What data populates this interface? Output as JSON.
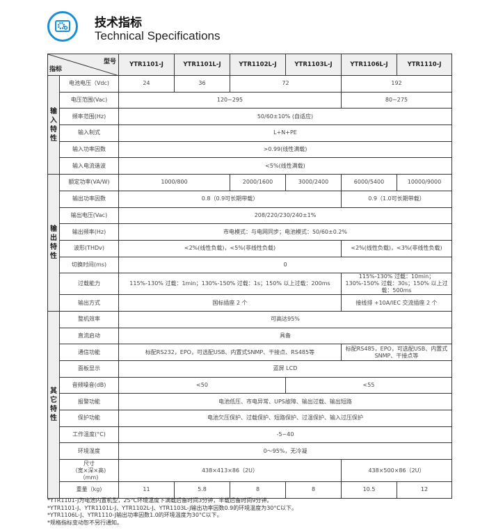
{
  "header": {
    "title_cn": "技术指标",
    "title_en": "Technical Specifications",
    "icon": "gear-settings-icon",
    "accent": "#1a8fd6"
  },
  "table": {
    "corner_model": "型号",
    "corner_spec": "指标",
    "models": [
      "YTR1101-J",
      "YTR1101L-J",
      "YTR1102L-J",
      "YTR1103L-J",
      "YTR1106L-J",
      "YTR1110-J"
    ],
    "groups": [
      {
        "name": "输\n入\n特\n性",
        "rows": [
          {
            "label": "电池电压（Vdc)",
            "cells": [
              {
                "t": "24",
                "s": 1
              },
              {
                "t": "36",
                "s": 1
              },
              {
                "t": "72",
                "s": 2
              },
              {
                "t": "192",
                "s": 2
              }
            ]
          },
          {
            "label": "电压范围(Vac)",
            "cells": [
              {
                "t": "120~295",
                "s": 4
              },
              {
                "t": "80~275",
                "s": 2
              }
            ]
          },
          {
            "label": "频率范围(Hz)",
            "cells": [
              {
                "t": "50/60±10% (自适应)",
                "s": 6
              }
            ]
          },
          {
            "label": "输入制式",
            "cells": [
              {
                "t": "L+N+PE",
                "s": 6
              }
            ]
          },
          {
            "label": "输入功率因数",
            "cells": [
              {
                "t": ">0.99(线性满载)",
                "s": 6
              }
            ]
          },
          {
            "label": "输入电流谐波",
            "cells": [
              {
                "t": "<5%(线性满载)",
                "s": 6
              }
            ]
          }
        ]
      },
      {
        "name": "输\n出\n特\n性",
        "rows": [
          {
            "label": "额定功率(VA/W)",
            "cells": [
              {
                "t": "1000/800",
                "s": 2
              },
              {
                "t": "2000/1600",
                "s": 1
              },
              {
                "t": "3000/2400",
                "s": 1
              },
              {
                "t": "6000/5400",
                "s": 1
              },
              {
                "t": "10000/9000",
                "s": 1
              }
            ]
          },
          {
            "label": "输出功率因数",
            "cells": [
              {
                "t": "0.8（0.9可长期带载）",
                "s": 4
              },
              {
                "t": "0.9（1.0可长期带载）",
                "s": 2
              }
            ]
          },
          {
            "label": "输出电压(Vac)",
            "cells": [
              {
                "t": "208/220/230/240±1%",
                "s": 6
              }
            ]
          },
          {
            "label": "输出频率(Hz)",
            "cells": [
              {
                "t": "市电模式：与电网同步；电池模式：50/60±0.2%",
                "s": 6
              }
            ]
          },
          {
            "label": "波形(THDv)",
            "cells": [
              {
                "t": "<2%(线性负载)，<5%(非线性负载)",
                "s": 4
              },
              {
                "t": "<2%(线性负载)，<3%(非线性负载)",
                "s": 2
              }
            ]
          },
          {
            "label": "切换时间(ms)",
            "cells": [
              {
                "t": "0",
                "s": 6
              }
            ]
          },
          {
            "label": "过载能力",
            "cells": [
              {
                "t": "115%-130% 过载：1min；130%-150% 过载：1s；150% 以上过载：200ms",
                "s": 4
              },
              {
                "t": "115%-130% 过载：10min；130%-150% 过载：30s；150% 以上过载：500ms",
                "s": 2
              }
            ]
          },
          {
            "label": "输出方式",
            "cells": [
              {
                "t": "国标插座 2 个",
                "s": 4
              },
              {
                "t": "接线排 +10A/IEC 交流插座 2 个",
                "s": 2
              }
            ]
          }
        ]
      },
      {
        "name": "其\n它\n特\n性",
        "rows": [
          {
            "label": "整机效率",
            "cells": [
              {
                "t": "可高达95%",
                "s": 6
              }
            ]
          },
          {
            "label": "直流启动",
            "cells": [
              {
                "t": "具备",
                "s": 6
              }
            ]
          },
          {
            "label": "通信功能",
            "cells": [
              {
                "t": "标配RS232，EPO，可选配USB、内置式SNMP、干接点、RS485等",
                "s": 4
              },
              {
                "t": "标配RS485，EPO，可选配USB、内置式SNMP、干接点等",
                "s": 2
              }
            ]
          },
          {
            "label": "面板显示",
            "cells": [
              {
                "t": "蓝屏 LCD",
                "s": 6
              }
            ]
          },
          {
            "label": "音频噪音(dB)",
            "cells": [
              {
                "t": "<50",
                "s": 3
              },
              {
                "t": "<55",
                "s": 3
              }
            ]
          },
          {
            "label": "报警功能",
            "cells": [
              {
                "t": "电池低压、市电异常、UPS故障、输出过载、输出短路",
                "s": 6
              }
            ]
          },
          {
            "label": "保护功能",
            "cells": [
              {
                "t": "电池欠压保护、过载保护、短路保护、过温保护、输入过压保护",
                "s": 6
              }
            ]
          },
          {
            "label": "工作温度(°C)",
            "cells": [
              {
                "t": "-5~40",
                "s": 6
              }
            ]
          },
          {
            "label": "环境湿度",
            "cells": [
              {
                "t": "0～95%，无冷凝",
                "s": 6
              }
            ]
          },
          {
            "label": "尺寸\n（宽×深×高)\n（mm)",
            "cells": [
              {
                "t": "438×413×86（2U）",
                "s": 4
              },
              {
                "t": "438×500×86（2U）",
                "s": 2
              }
            ]
          },
          {
            "label": "重量（kg)",
            "cells": [
              {
                "t": "11",
                "s": 1
              },
              {
                "t": "5.8",
                "s": 1
              },
              {
                "t": "8",
                "s": 1
              },
              {
                "t": "8",
                "s": 1
              },
              {
                "t": "10.5",
                "s": 1
              },
              {
                "t": "12",
                "s": 1
              }
            ]
          }
        ]
      }
    ]
  },
  "notes": [
    "*YTR1101-J为电池内置机型，25°C环境温度下满载后备时间3分钟，半载后备时间9分钟。",
    "*YTR1101-J、YTR1101L-J、YTR1102L-J、YTR1103L-J输出功率因数0.9的环境温度为30°C以下。",
    "*YTR1106L-J、YTR1110-J输出功率因数1.0的环境温度为30°C以下。",
    "*规格指标变动恕不另行通知。"
  ]
}
